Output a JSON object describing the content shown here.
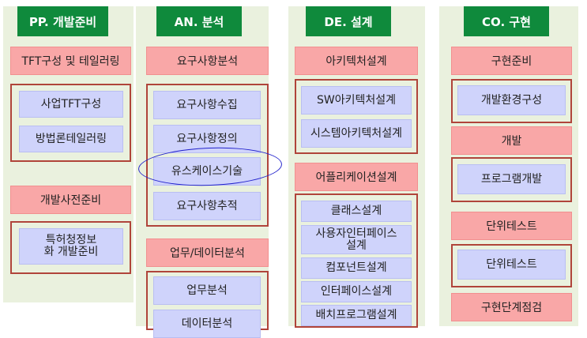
{
  "columns": [
    {
      "header": "PP. 개발준비",
      "phases": [
        "TFT구성 및 테일러링",
        "개발사전준비"
      ],
      "activities": [
        "사업TFT구성",
        "방법론테일러링",
        "특허청정보화 개발준비"
      ]
    },
    {
      "header": "AN. 분석",
      "phases": [
        "요구사항분석",
        "업무/데이터분석"
      ],
      "activities": [
        "요구사항수집",
        "요구사항정의",
        "유스케이스기술",
        "요구사항추적",
        "업무분석",
        "데이터분석"
      ]
    },
    {
      "header": "DE. 설계",
      "phases": [
        "아키텍처설계",
        "어플리케이션설계"
      ],
      "activities": [
        "SW아키텍처설계",
        "시스템아키텍처설계",
        "클래스설계",
        "사용자인터페이스 설계",
        "컴포넌트설계",
        "인터페이스설계",
        "배치프로그램설계"
      ]
    },
    {
      "header": "CO. 구현",
      "phases": [
        "구현준비",
        "개발",
        "단위테스트",
        "구현단계점검"
      ],
      "activities": [
        "개발환경구성",
        "프로그램개발",
        "단위테스트"
      ]
    }
  ],
  "highlight_color": "#2222cc"
}
